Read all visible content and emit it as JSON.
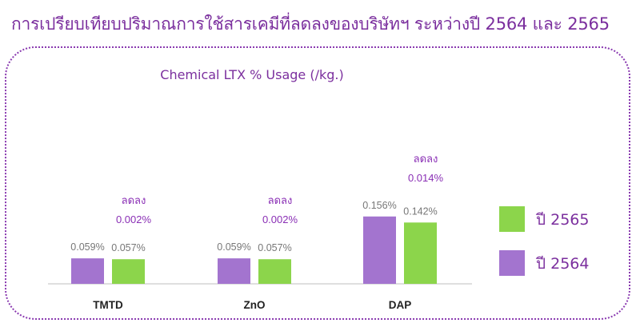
{
  "header": {
    "title": "การเปรียบเทียบปริมาณการใช้สารเคมีที่ลดลงของบริษัทฯ ระหว่างปี 2564 และ 2565"
  },
  "colors": {
    "title": "#7b2f9e",
    "series_2564": "#a374cf",
    "series_2565": "#8cd54b",
    "value_label": "#777777",
    "annotation": "#8a2fb5",
    "axis": "#bfbfbf",
    "frame": "#8a3ab0"
  },
  "chart_data": {
    "type": "bar",
    "title": "Chemical LTX % Usage (/kg.)",
    "categories": [
      "TMTD",
      "ZnO",
      "DAP"
    ],
    "series": [
      {
        "name": "ปี 2564",
        "values": [
          0.059,
          0.059,
          0.156
        ],
        "labels": [
          "0.059%",
          "0.059%",
          "0.156%"
        ]
      },
      {
        "name": "ปี 2565",
        "values": [
          0.057,
          0.057,
          0.142
        ],
        "labels": [
          "0.057%",
          "0.057%",
          "0.142%"
        ]
      }
    ],
    "annotations": [
      {
        "category": "TMTD",
        "word": "ลดลง",
        "value": "0.002%"
      },
      {
        "category": "ZnO",
        "word": "ลดลง",
        "value": "0.002%"
      },
      {
        "category": "DAP",
        "word": "ลดลง",
        "value": "0.014%"
      }
    ],
    "legend_placement": "right",
    "legend_order": [
      "ปี 2565",
      "ปี 2564"
    ],
    "grid": false,
    "xlabel": "",
    "ylabel": ""
  }
}
